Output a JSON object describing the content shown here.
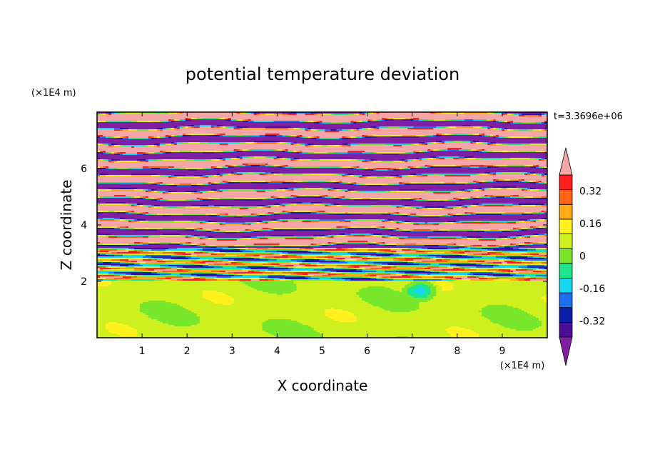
{
  "chart_data": {
    "type": "heatmap",
    "title": "potential temperature deviation",
    "xlabel": "X coordinate",
    "ylabel": "Z coordinate",
    "x_unit": "(×1E4 m)",
    "y_unit": "(×1E4 m)",
    "time_label": "t=3.3696e+06",
    "xlim": [
      0,
      10
    ],
    "ylim": [
      0,
      8
    ],
    "x_ticks": [
      1,
      2,
      3,
      4,
      5,
      6,
      7,
      8,
      9
    ],
    "y_ticks": [
      2,
      4,
      6
    ],
    "colorbar": {
      "levels": [
        -0.48,
        -0.4,
        -0.32,
        -0.24,
        -0.16,
        -0.08,
        0,
        0.08,
        0.16,
        0.24,
        0.32,
        0.4,
        0.48
      ],
      "tick_labels": [
        "0.32",
        "0.16",
        "0",
        "-0.16",
        "-0.32"
      ],
      "tick_values": [
        0.32,
        0.16,
        0,
        -0.16,
        -0.32
      ],
      "colors_low_to_high": [
        "#7f1fa3",
        "#4b0f96",
        "#0a1ea8",
        "#1e6ef0",
        "#17d7f0",
        "#1ee68c",
        "#78e62b",
        "#cdf01e",
        "#fff01e",
        "#ffaa14",
        "#ff6414",
        "#ff1e1e",
        "#f5a5a5"
      ],
      "extend": "both"
    },
    "layers": [
      {
        "z_range": [
          2.0,
          8.0
        ],
        "pattern": "horizontal banded layers alternating strongly positive (pink) and strongly negative (purple), thinner with mixed colors near the bottom"
      },
      {
        "z_range": [
          0.0,
          2.0
        ],
        "pattern": "near-neutral region (green) with patches slightly negative (teal), vortex near x=7.2, z=1.7"
      }
    ]
  }
}
